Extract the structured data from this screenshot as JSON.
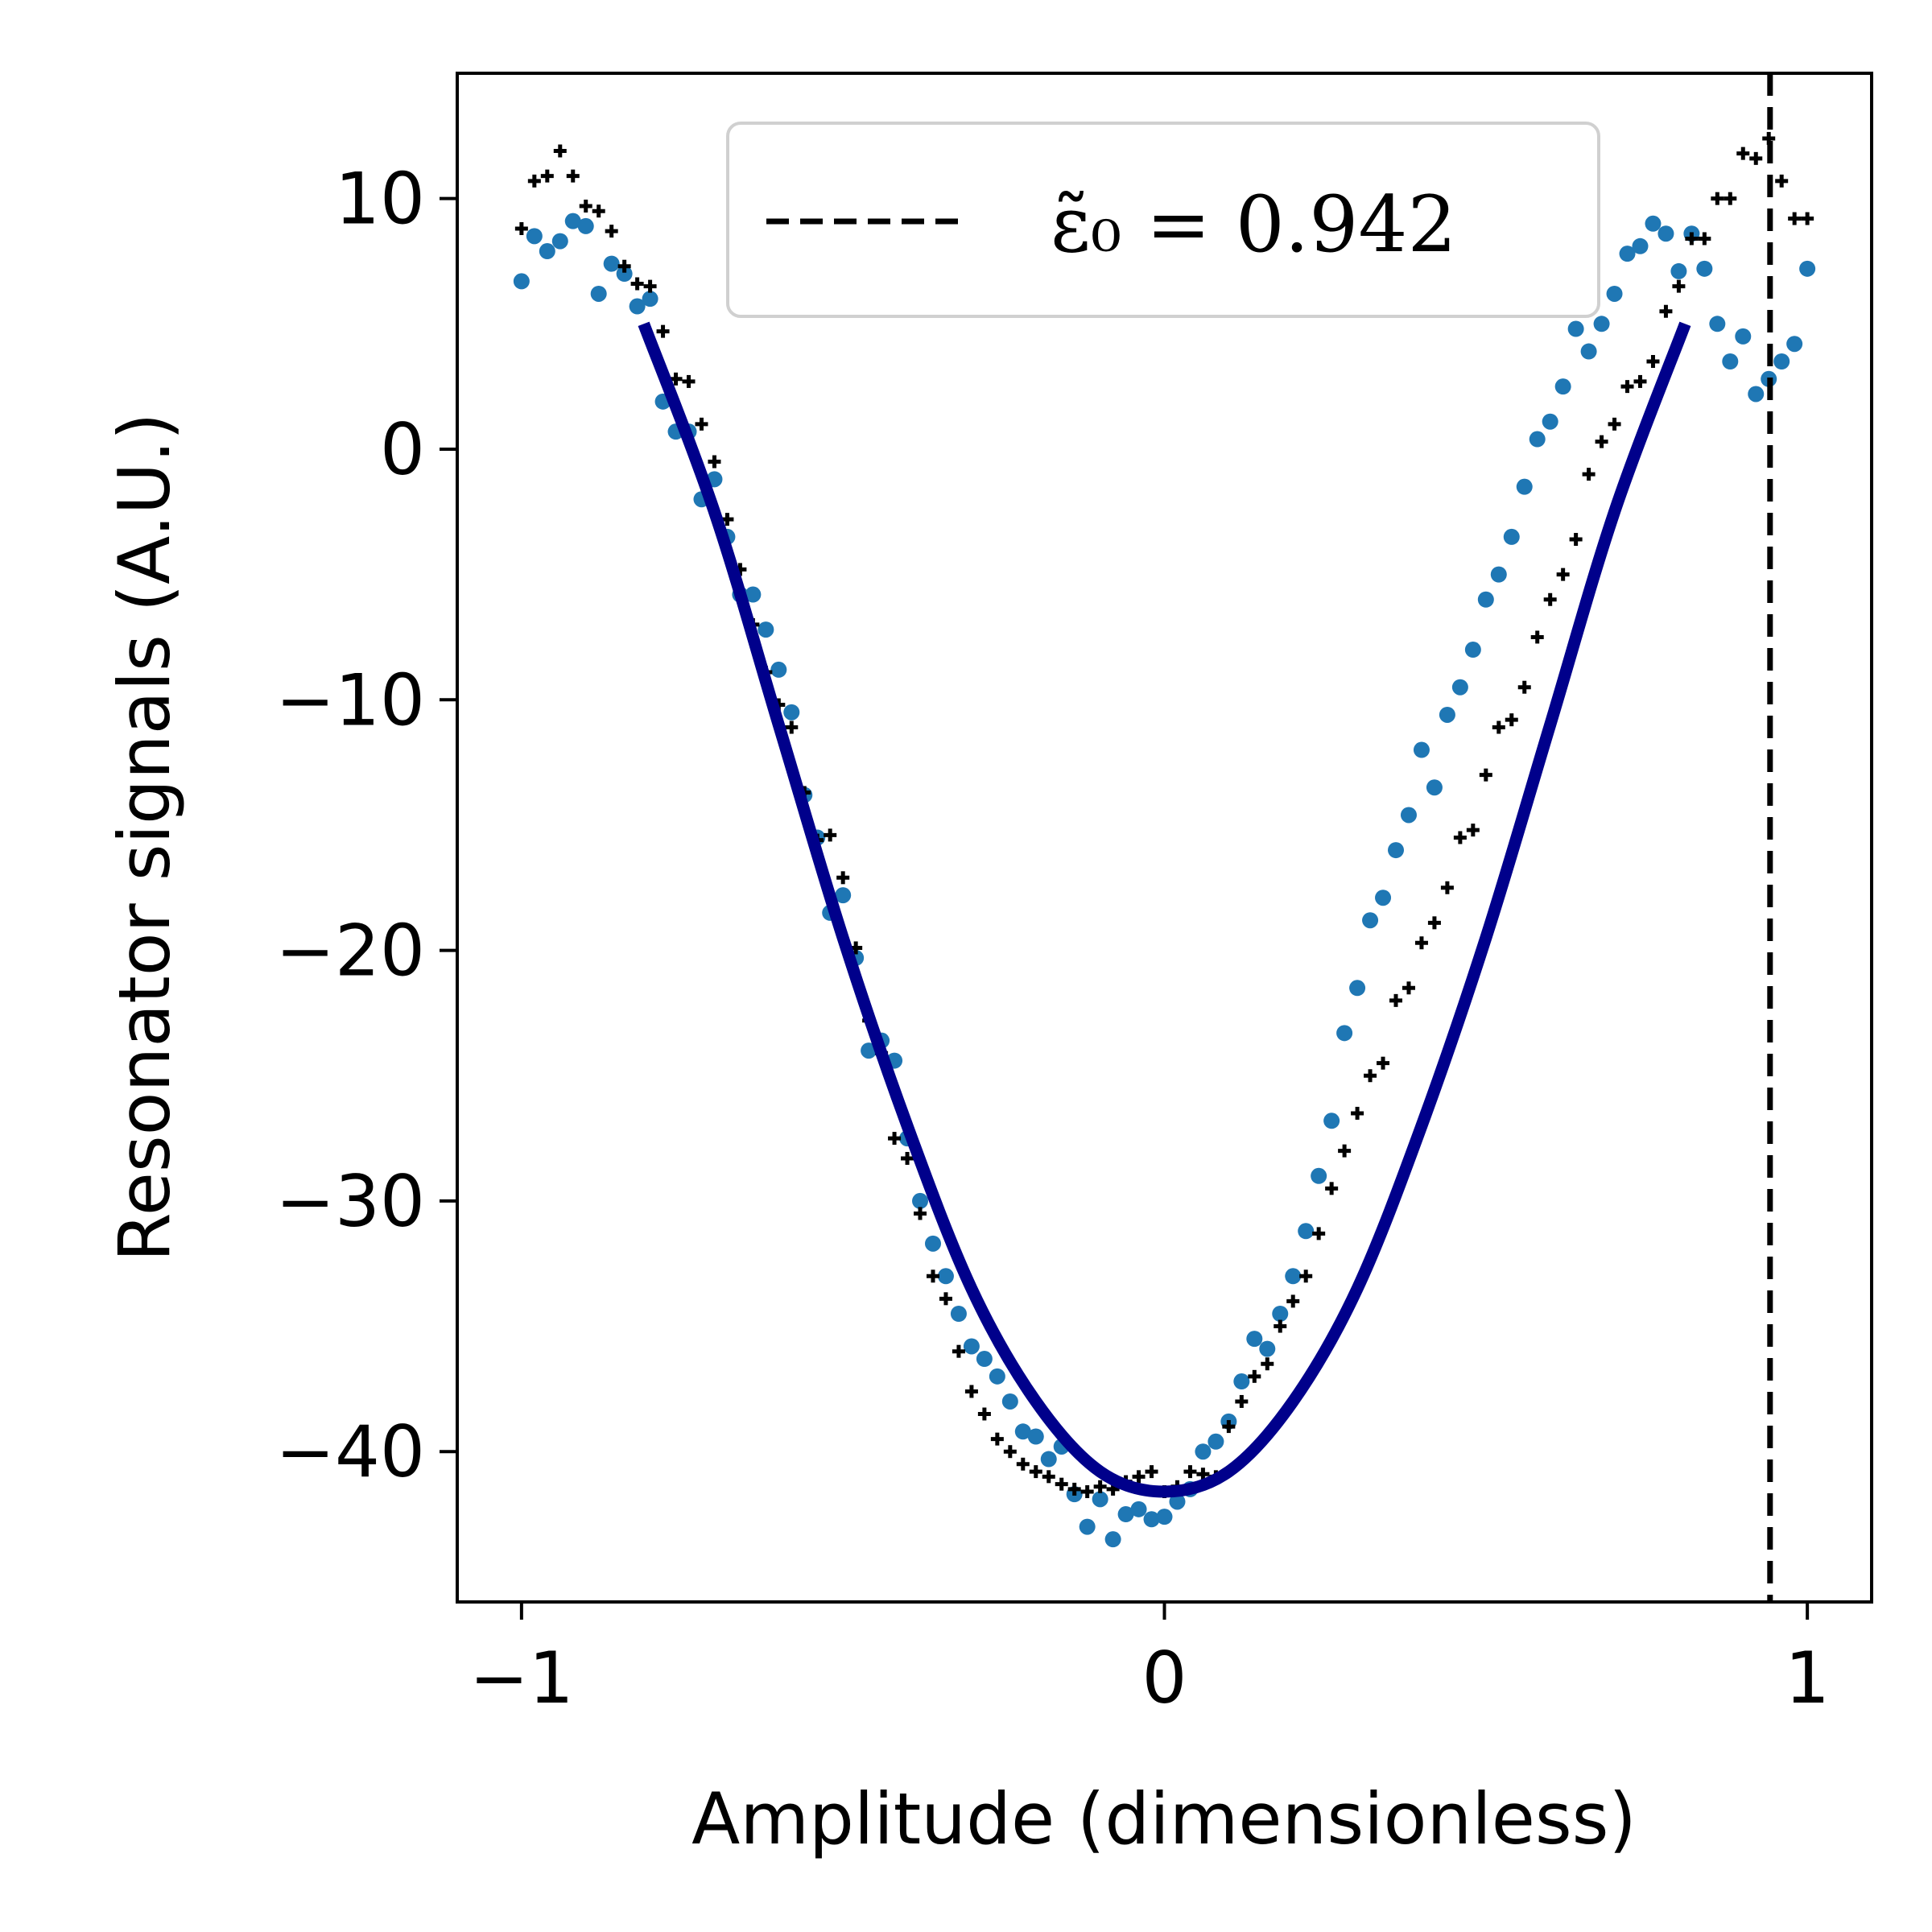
{
  "chart_data": {
    "type": "scatter",
    "title": "",
    "xlabel": "Amplitude (dimensionless)",
    "ylabel": "Resonator signals (A.U.)",
    "xlim": [
      -1.1,
      1.1
    ],
    "ylim": [
      -46,
      15
    ],
    "xticks": [
      -1,
      0,
      1
    ],
    "xtick_labels": [
      "−1",
      "0",
      "1"
    ],
    "yticks": [
      10,
      0,
      -10,
      -20,
      -30,
      -40
    ],
    "ytick_labels": [
      "10",
      "0",
      "−10",
      "−20",
      "−30",
      "−40"
    ],
    "grid": false,
    "legend": {
      "position": "top-center",
      "label": "ε̃₀ = 0.942"
    },
    "vline": {
      "x": 0.942,
      "style": "dashed",
      "color": "#000000"
    },
    "fit": {
      "color": "#00008b",
      "x": [
        -0.81,
        -0.7,
        -0.6,
        -0.5,
        -0.4,
        -0.3,
        -0.2,
        -0.1,
        0.0,
        0.1,
        0.2,
        0.3,
        0.4,
        0.5,
        0.6,
        0.7,
        0.81
      ],
      "y": [
        5.0,
        -2.5,
        -11.0,
        -19.5,
        -27.0,
        -33.5,
        -38.0,
        -40.8,
        -41.6,
        -40.8,
        -38.0,
        -33.5,
        -27.0,
        -19.5,
        -11.0,
        -2.5,
        5.0
      ]
    },
    "series": [
      {
        "marker": "dot",
        "color": "#1f77b4",
        "x": [
          -1.0,
          -0.98,
          -0.96,
          -0.94,
          -0.92,
          -0.9,
          -0.88,
          -0.86,
          -0.84,
          -0.82,
          -0.8,
          -0.78,
          -0.76,
          -0.74,
          -0.72,
          -0.7,
          -0.68,
          -0.66,
          -0.64,
          -0.62,
          -0.6,
          -0.58,
          -0.56,
          -0.54,
          -0.52,
          -0.5,
          -0.48,
          -0.46,
          -0.44,
          -0.42,
          -0.4,
          -0.38,
          -0.36,
          -0.34,
          -0.32,
          -0.3,
          -0.28,
          -0.26,
          -0.24,
          -0.22,
          -0.2,
          -0.18,
          -0.16,
          -0.14,
          -0.12,
          -0.1,
          -0.08,
          -0.06,
          -0.04,
          -0.02,
          0.0,
          0.02,
          0.04,
          0.06,
          0.08,
          0.1,
          0.12,
          0.14,
          0.16,
          0.18,
          0.2,
          0.22,
          0.24,
          0.26,
          0.28,
          0.3,
          0.32,
          0.34,
          0.36,
          0.38,
          0.4,
          0.42,
          0.44,
          0.46,
          0.48,
          0.5,
          0.52,
          0.54,
          0.56,
          0.58,
          0.6,
          0.62,
          0.64,
          0.66,
          0.68,
          0.7,
          0.72,
          0.74,
          0.76,
          0.78,
          0.8,
          0.82,
          0.84,
          0.86,
          0.88,
          0.9,
          0.92,
          0.94,
          0.96,
          0.98,
          1.0
        ],
        "y": [
          6.7,
          8.5,
          7.9,
          8.3,
          9.1,
          8.9,
          6.2,
          7.4,
          7.0,
          5.7,
          6.0,
          1.9,
          0.7,
          0.7,
          -2.0,
          -1.2,
          -3.5,
          -5.8,
          -5.8,
          -7.2,
          -8.8,
          -10.5,
          -13.8,
          -15.5,
          -18.5,
          -17.8,
          -20.3,
          -24.0,
          -23.6,
          -24.4,
          -27.5,
          -30.0,
          -31.7,
          -33.0,
          -34.5,
          -35.8,
          -36.3,
          -37.0,
          -38.0,
          -39.2,
          -39.4,
          -40.3,
          -39.8,
          -41.7,
          -43.0,
          -41.9,
          -43.5,
          -42.5,
          -42.3,
          -42.7,
          -42.6,
          -42.0,
          -41.5,
          -40.0,
          -39.6,
          -38.8,
          -37.2,
          -35.5,
          -35.9,
          -34.5,
          -33.0,
          -31.2,
          -29.0,
          -26.8,
          -23.3,
          -21.5,
          -18.8,
          -17.9,
          -16.0,
          -14.6,
          -12.0,
          -13.5,
          -10.6,
          -9.5,
          -8.0,
          -6.0,
          -5.0,
          -3.5,
          -1.5,
          0.4,
          1.1,
          2.5,
          4.8,
          3.9,
          5.0,
          6.2,
          7.8,
          8.1,
          9.0,
          8.6,
          7.1,
          8.6,
          7.2,
          5.0,
          3.5,
          4.5,
          2.2,
          2.8,
          3.5,
          4.2,
          7.2
        ]
      },
      {
        "marker": "plus",
        "color": "#000000",
        "x": [
          -1.0,
          -0.98,
          -0.96,
          -0.94,
          -0.92,
          -0.9,
          -0.88,
          -0.86,
          -0.84,
          -0.82,
          -0.8,
          -0.78,
          -0.76,
          -0.74,
          -0.72,
          -0.7,
          -0.68,
          -0.66,
          -0.64,
          -0.62,
          -0.6,
          -0.58,
          -0.56,
          -0.54,
          -0.52,
          -0.5,
          -0.48,
          -0.46,
          -0.44,
          -0.42,
          -0.4,
          -0.38,
          -0.36,
          -0.34,
          -0.32,
          -0.3,
          -0.28,
          -0.26,
          -0.24,
          -0.22,
          -0.2,
          -0.18,
          -0.16,
          -0.14,
          -0.12,
          -0.1,
          -0.08,
          -0.06,
          -0.04,
          -0.02,
          0.0,
          0.02,
          0.04,
          0.06,
          0.08,
          0.1,
          0.12,
          0.14,
          0.16,
          0.18,
          0.2,
          0.22,
          0.24,
          0.26,
          0.28,
          0.3,
          0.32,
          0.34,
          0.36,
          0.38,
          0.4,
          0.42,
          0.44,
          0.46,
          0.48,
          0.5,
          0.52,
          0.54,
          0.56,
          0.58,
          0.6,
          0.62,
          0.64,
          0.66,
          0.68,
          0.7,
          0.72,
          0.74,
          0.76,
          0.78,
          0.8,
          0.82,
          0.84,
          0.86,
          0.88,
          0.9,
          0.92,
          0.94,
          0.96,
          0.98,
          1.0
        ],
        "y": [
          8.8,
          10.7,
          10.9,
          11.9,
          10.9,
          9.7,
          9.5,
          8.7,
          7.3,
          6.6,
          6.5,
          4.7,
          2.8,
          2.7,
          1.0,
          -0.5,
          -2.8,
          -4.8,
          -7.0,
          -8.9,
          -10.2,
          -11.1,
          -13.7,
          -15.6,
          -15.4,
          -17.1,
          -19.9,
          -22.8,
          -24.1,
          -27.5,
          -28.3,
          -30.5,
          -33.0,
          -33.9,
          -36.0,
          -37.6,
          -38.5,
          -39.5,
          -40.0,
          -40.5,
          -40.8,
          -41.0,
          -41.3,
          -41.5,
          -41.6,
          -41.4,
          -41.5,
          -41.2,
          -41.0,
          -40.8,
          -41.6,
          -41.4,
          -40.8,
          -40.9,
          -41.0,
          -39.0,
          -38.0,
          -37.0,
          -36.5,
          -35.0,
          -34.0,
          -33.0,
          -31.3,
          -29.5,
          -28.0,
          -26.5,
          -25.0,
          -24.5,
          -22.0,
          -21.5,
          -19.7,
          -18.9,
          -17.5,
          -15.5,
          -15.2,
          -13.0,
          -11.1,
          -10.8,
          -9.5,
          -7.5,
          -6.0,
          -5.0,
          -3.6,
          -1.0,
          0.3,
          1.0,
          2.5,
          2.7,
          3.5,
          5.5,
          6.5,
          8.4,
          8.4,
          10.0,
          10.0,
          11.8,
          11.6,
          12.4,
          10.7,
          9.2,
          9.2
        ]
      }
    ]
  }
}
